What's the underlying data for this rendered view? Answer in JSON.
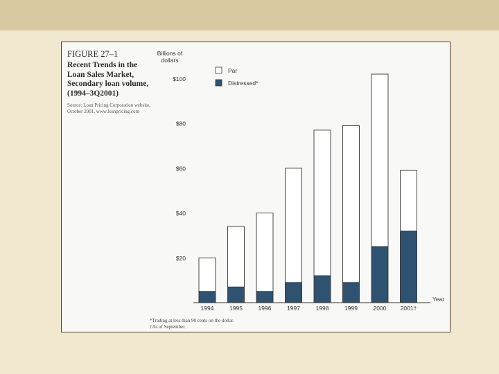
{
  "figure": {
    "label": "FIGURE 27–1",
    "title": "Recent Trends in the Loan Sales Market, Secondary loan volume, (1994–3Q2001)",
    "source": "Source: Loan Pricing Corporation website, October 2001, www.loanpricing.com",
    "footnote_1": "*Trading at less than 90 cents on the dollar.",
    "footnote_2": "†As of September."
  },
  "colors": {
    "par": "#ffffff",
    "distressed": "#2f5270",
    "frame": "#4a3a2a"
  },
  "chart_data": {
    "type": "bar",
    "stacked": true,
    "categories": [
      "1994",
      "1995",
      "1996",
      "1997",
      "1998",
      "1999",
      "2000",
      "2001†"
    ],
    "series": [
      {
        "name": "Distressed*",
        "values": [
          5,
          7,
          5,
          9,
          12,
          9,
          25,
          32
        ]
      },
      {
        "name": "Par",
        "values": [
          15,
          27,
          35,
          51,
          65,
          70,
          77,
          27
        ]
      }
    ],
    "totals": [
      20,
      34,
      40,
      60,
      77,
      79,
      102,
      59
    ],
    "ylabel": "Billions of dollars",
    "xlabel": "Year",
    "ylim": [
      0,
      105
    ],
    "yticks": [
      20,
      40,
      60,
      80,
      100
    ],
    "ytick_labels": [
      "$20",
      "$40",
      "$60",
      "$80",
      "$100"
    ],
    "legend_position": "top-left",
    "grid": false
  }
}
